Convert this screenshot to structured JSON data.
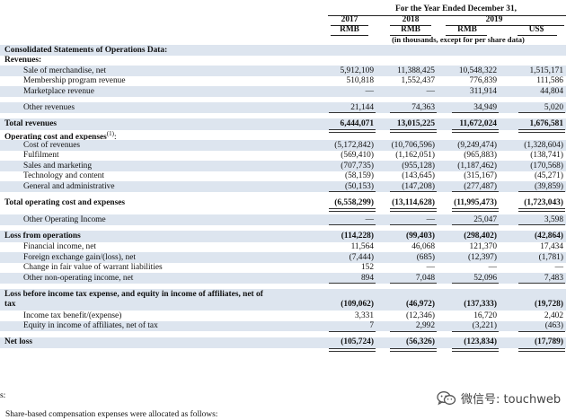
{
  "header": {
    "period": "For the Year Ended December 31,",
    "years": [
      "2017",
      "2018",
      "2019"
    ],
    "currencies": [
      "RMB",
      "RMB",
      "RMB",
      "US$"
    ],
    "note": "(in thousands, except for per share data)"
  },
  "rows": [
    {
      "label": "Consolidated Statements of Operations Data:",
      "style": "section",
      "shade": true,
      "values": []
    },
    {
      "label": "Revenues:",
      "style": "section",
      "shade": false,
      "values": []
    },
    {
      "label": "Sale of merchandise, net",
      "style": "item",
      "shade": true,
      "values": [
        "5,912,109",
        "11,388,425",
        "10,548,322",
        "1,515,171"
      ]
    },
    {
      "label": "Membership program revenue",
      "style": "item",
      "shade": false,
      "values": [
        "510,818",
        "1,552,437",
        "776,839",
        "111,586"
      ]
    },
    {
      "label": "Marketplace revenue",
      "style": "item",
      "shade": true,
      "values": [
        "—",
        "—",
        "311,914",
        "44,804"
      ]
    },
    {
      "label": "",
      "style": "spacer",
      "shade": false,
      "values": []
    },
    {
      "label": "Other revenues",
      "style": "item",
      "shade": true,
      "values": [
        "21,144",
        "74,363",
        "34,949",
        "5,020"
      ]
    },
    {
      "label": "",
      "style": "spacer",
      "shade": false,
      "values": []
    },
    {
      "label": "Total revenues",
      "style": "total",
      "shade": true,
      "values": [
        "6,444,071",
        "13,015,225",
        "11,672,024",
        "1,676,581"
      ]
    },
    {
      "label": "Operating cost and expenses",
      "sup": "(1)",
      "style": "section",
      "shade": false,
      "values": []
    },
    {
      "label": "Cost of revenues",
      "style": "item",
      "shade": true,
      "values": [
        "(5,172,842)",
        "(10,706,596)",
        "(9,249,474)",
        "(1,328,604)"
      ]
    },
    {
      "label": "Fulfilment",
      "style": "item",
      "shade": false,
      "values": [
        "(569,410)",
        "(1,162,051)",
        "(965,883)",
        "(138,741)"
      ]
    },
    {
      "label": "Sales and marketing",
      "style": "item",
      "shade": true,
      "values": [
        "(707,735)",
        "(955,128)",
        "(1,187,462)",
        "(170,568)"
      ]
    },
    {
      "label": "Technology and content",
      "style": "item",
      "shade": false,
      "values": [
        "(58,159)",
        "(143,645)",
        "(315,167)",
        "(45,271)"
      ]
    },
    {
      "label": "General and administrative",
      "style": "item",
      "shade": true,
      "values": [
        "(50,153)",
        "(147,208)",
        "(277,487)",
        "(39,859)"
      ]
    },
    {
      "label": "",
      "style": "spacer",
      "shade": false,
      "values": []
    },
    {
      "label": "Total operating cost and expenses",
      "style": "total",
      "shade": false,
      "values": [
        "(6,558,299)",
        "(13,114,628)",
        "(11,995,473)",
        "(1,723,043)"
      ]
    },
    {
      "label": "",
      "style": "spacer",
      "shade": false,
      "values": []
    },
    {
      "label": "Other Operating Income",
      "style": "item",
      "shade": true,
      "values": [
        "—",
        "—",
        "25,047",
        "3,598"
      ]
    },
    {
      "label": "",
      "style": "spacer",
      "shade": false,
      "values": []
    },
    {
      "label": "Loss from operations",
      "style": "total",
      "shade": true,
      "values": [
        "(114,228)",
        "(99,403)",
        "(298,402)",
        "(42,864)"
      ]
    },
    {
      "label": "Financial income, net",
      "style": "item",
      "shade": false,
      "values": [
        "11,564",
        "46,068",
        "121,370",
        "17,434"
      ]
    },
    {
      "label": "Foreign exchange gain/(loss), net",
      "style": "item",
      "shade": true,
      "values": [
        "(7,444)",
        "(685)",
        "(12,397)",
        "(1,781)"
      ]
    },
    {
      "label": "Change in fair value of warrant liabilities",
      "style": "item",
      "shade": false,
      "values": [
        "152",
        "—",
        "—",
        "—"
      ]
    },
    {
      "label": "Other non-operating income, net",
      "style": "item",
      "shade": true,
      "values": [
        "894",
        "7,048",
        "52,096",
        "7,483"
      ]
    },
    {
      "label": "",
      "style": "spacer",
      "shade": false,
      "values": []
    },
    {
      "label": "Loss before income tax expense, and equity in income of affiliates, net of",
      "style": "section",
      "shade": true,
      "values": []
    },
    {
      "label": "tax",
      "style": "total",
      "shade": true,
      "values": [
        "(109,062)",
        "(46,972)",
        "(137,333)",
        "(19,728)"
      ]
    },
    {
      "label": "Income tax benefit/(expense)",
      "style": "item",
      "shade": false,
      "values": [
        "3,331",
        "(12,346)",
        "16,720",
        "2,402"
      ]
    },
    {
      "label": "Equity in income of affiliates, net of tax",
      "style": "item",
      "shade": true,
      "values": [
        "7",
        "2,992",
        "(3,221)",
        "(463)"
      ]
    },
    {
      "label": "",
      "style": "spacer",
      "shade": false,
      "values": []
    },
    {
      "label": "Net loss",
      "style": "total",
      "shade": true,
      "values": [
        "(105,724)",
        "(56,326)",
        "(123,834)",
        "(17,789)"
      ]
    }
  ],
  "footer": {
    "colon": "s:",
    "note": "Share-based compensation expenses were allocated as follows:"
  },
  "watermark": {
    "icon": "wechat-icon",
    "text": "微信号: touchweb"
  }
}
